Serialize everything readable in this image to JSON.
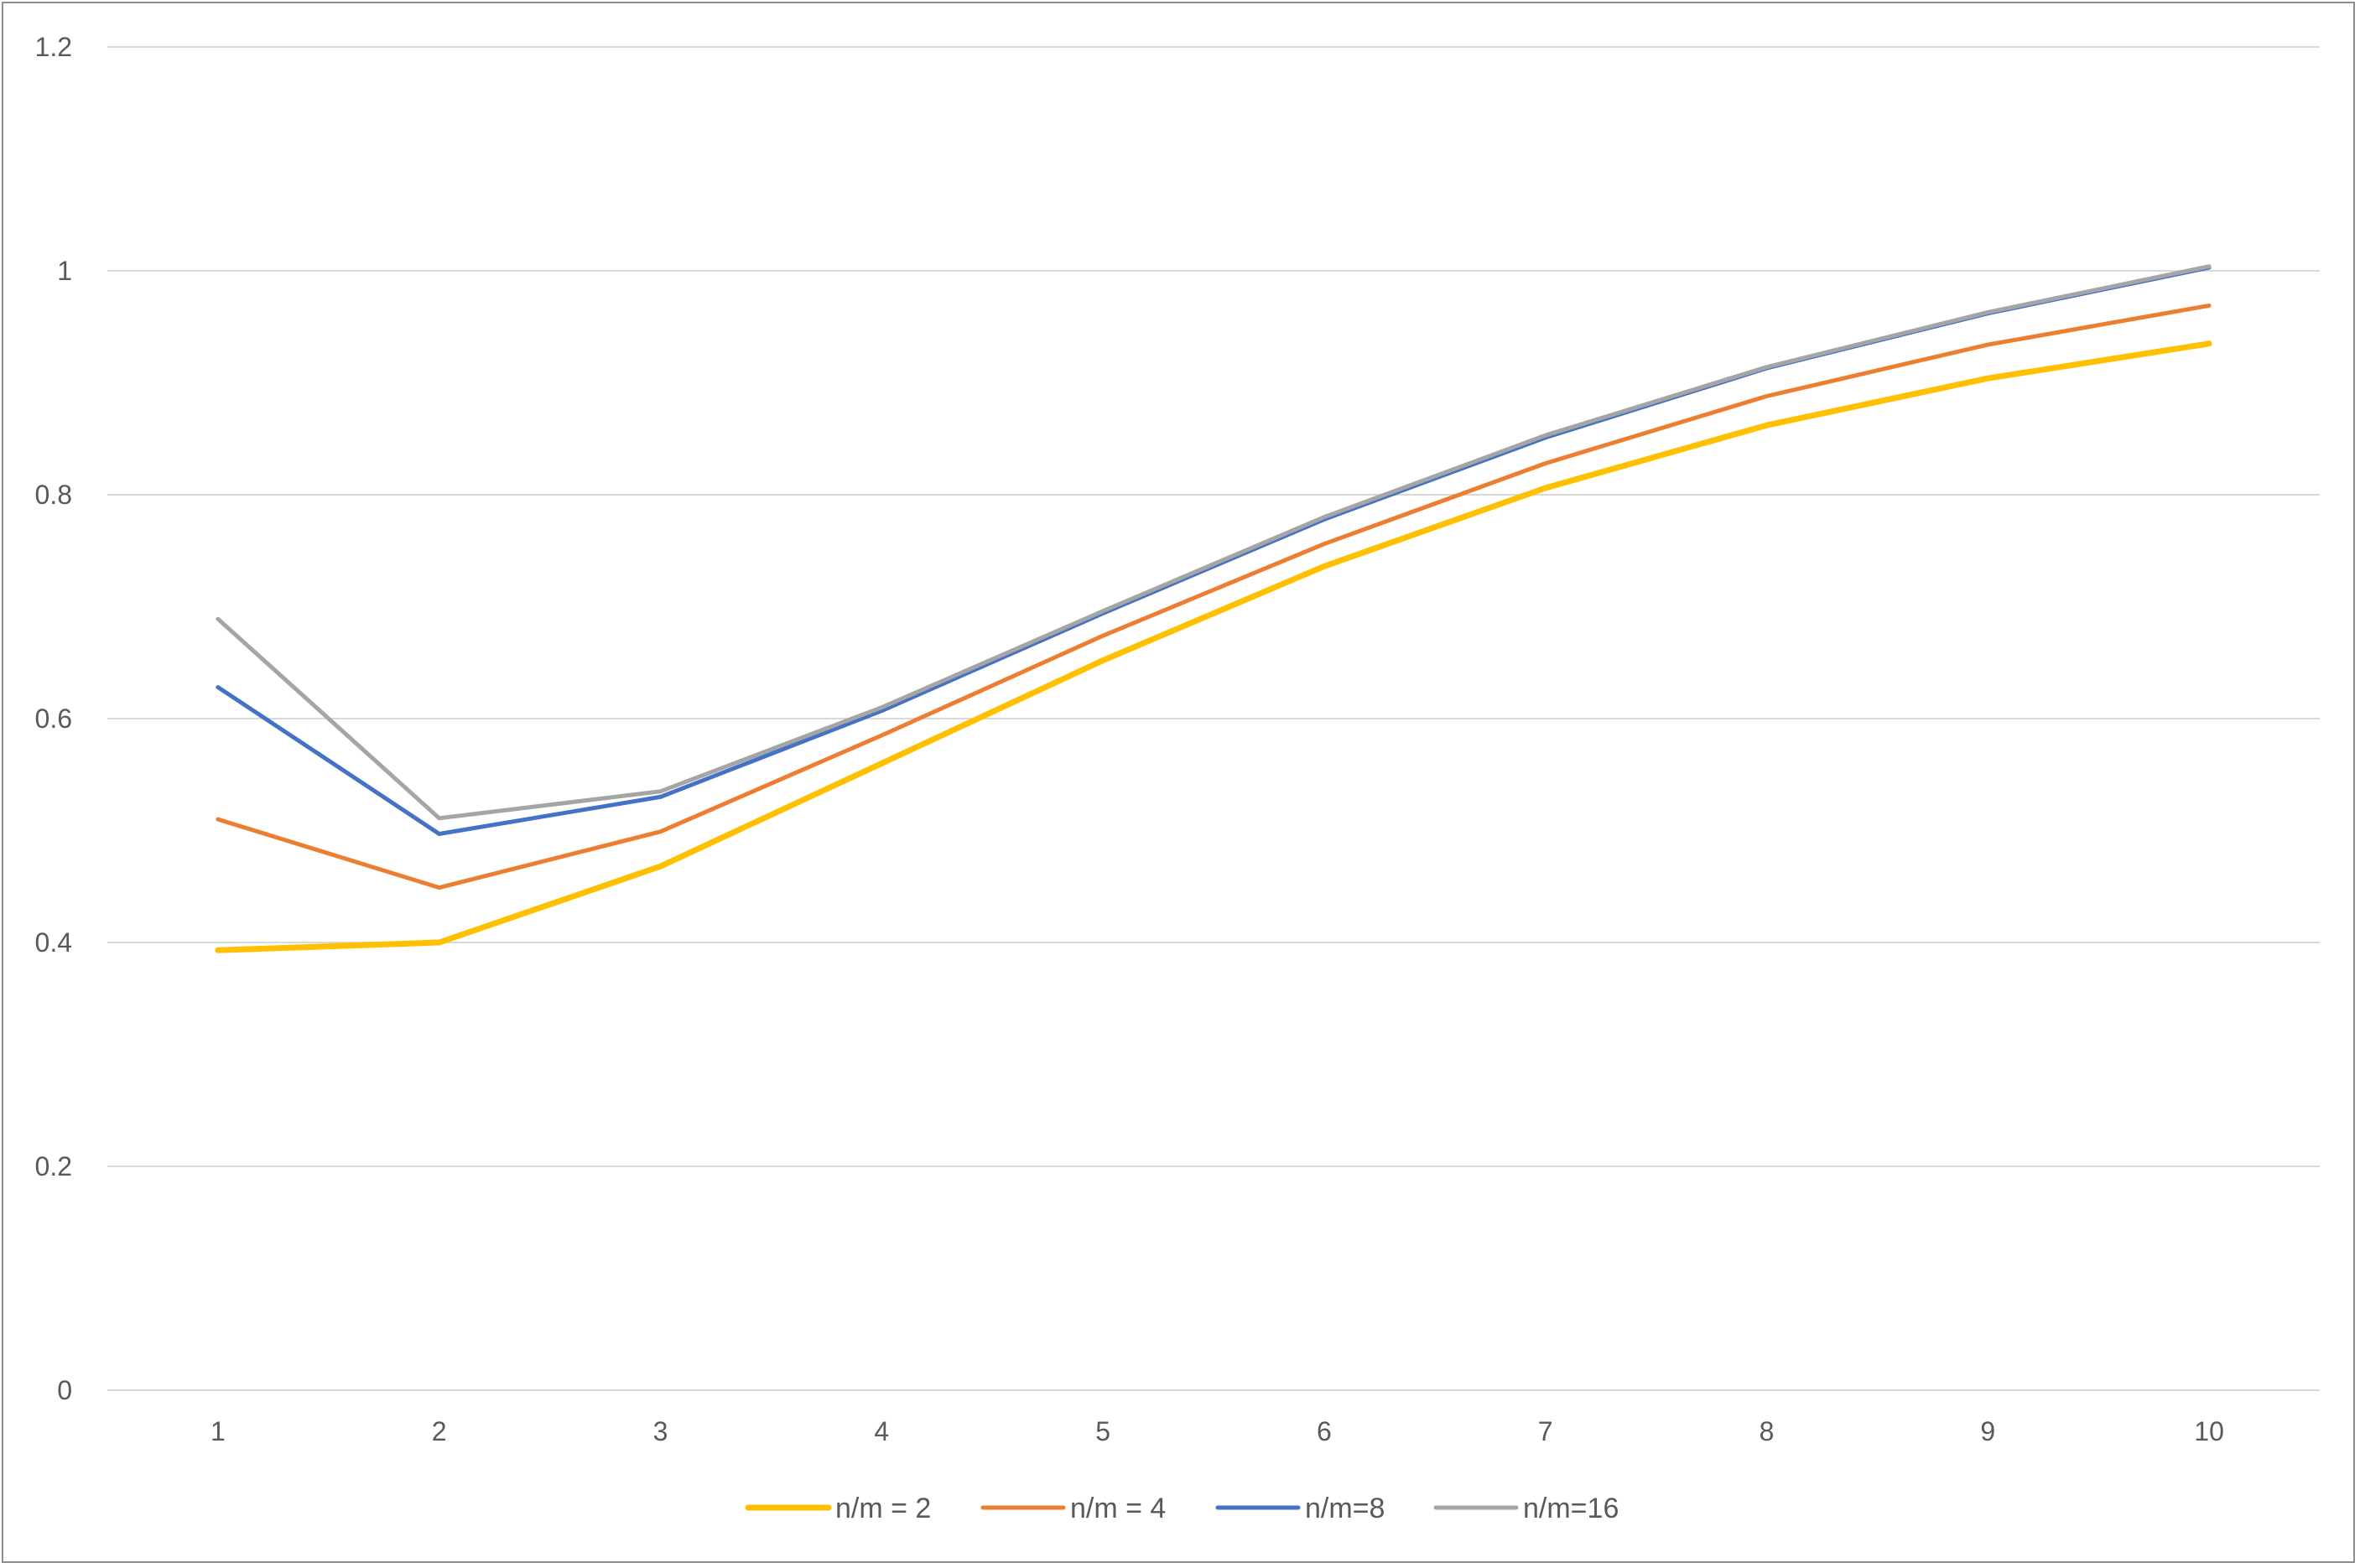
{
  "chart_data": {
    "type": "line",
    "title": "",
    "xlabel": "",
    "ylabel": "",
    "categories": [
      "1",
      "2",
      "3",
      "4",
      "5",
      "6",
      "7",
      "8",
      "9",
      "10"
    ],
    "ylim": [
      0,
      1.2
    ],
    "yticks": [
      "0",
      "0.2",
      "0.4",
      "0.6",
      "0.8",
      "1",
      "1.2"
    ],
    "grid": true,
    "legend_position": "bottom",
    "series": [
      {
        "name": "n/m = 2",
        "color": "#FFC000",
        "values": [
          0.393,
          0.4,
          0.468,
          0.56,
          0.652,
          0.736,
          0.806,
          0.862,
          0.904,
          0.935
        ]
      },
      {
        "name": "n/m = 4",
        "color": "#ED7D31",
        "values": [
          0.51,
          0.449,
          0.499,
          0.585,
          0.674,
          0.756,
          0.828,
          0.888,
          0.934,
          0.969
        ]
      },
      {
        "name": "n/m=8",
        "color": "#4472C4",
        "values": [
          0.628,
          0.497,
          0.53,
          0.607,
          0.694,
          0.778,
          0.851,
          0.913,
          0.962,
          1.003
        ]
      },
      {
        "name": "n/m=16",
        "color": "#A5A5A5",
        "values": [
          0.689,
          0.511,
          0.535,
          0.61,
          0.696,
          0.78,
          0.853,
          0.914,
          0.963,
          1.004
        ]
      }
    ]
  }
}
